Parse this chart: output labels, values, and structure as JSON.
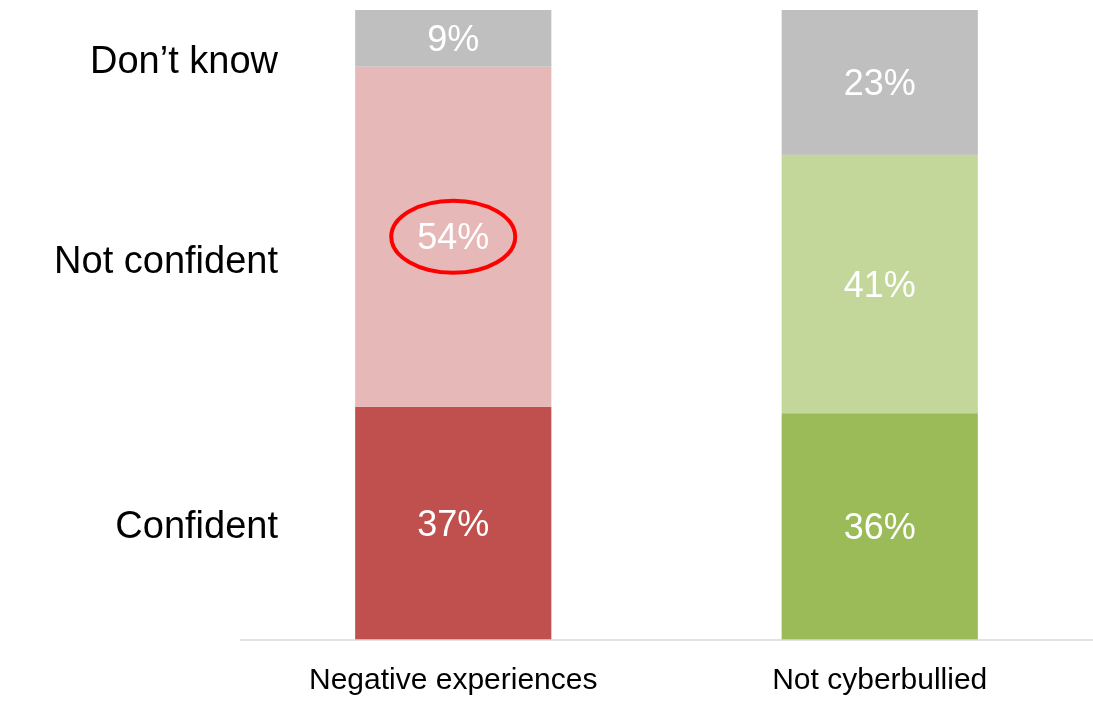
{
  "chart_data": {
    "type": "bar",
    "stacked": true,
    "categories": [
      "Negative experiences",
      "Not cyberbullied"
    ],
    "series": [
      {
        "name": "Confident",
        "colors": [
          "#c0504d",
          "#9bbb59"
        ],
        "values": [
          37,
          36
        ],
        "value_labels": [
          "37%",
          "36%"
        ]
      },
      {
        "name": "Not confident",
        "colors": [
          "#e6b8b7",
          "#c4d79b"
        ],
        "values": [
          54,
          41
        ],
        "value_labels": [
          "54%",
          "41%"
        ]
      },
      {
        "name": "Don’t know",
        "colors": [
          "#bfbfbf",
          "#bfbfbf"
        ],
        "values": [
          9,
          23
        ],
        "value_labels": [
          "9%",
          "23%"
        ]
      }
    ]
  }
}
